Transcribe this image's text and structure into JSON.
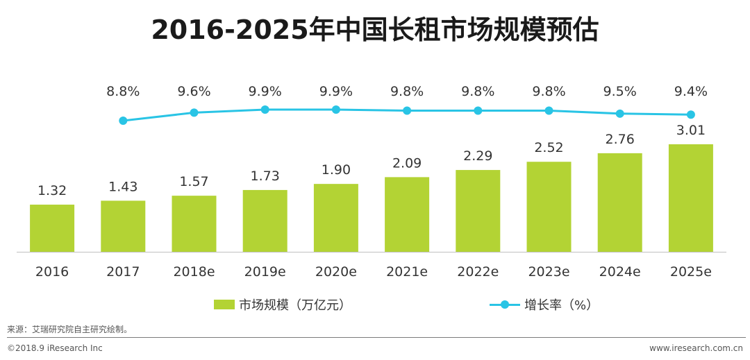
{
  "title": "2016-2025年中国长租市场规模预估",
  "chart_data": {
    "type": "bar+line",
    "categories": [
      "2016",
      "2017",
      "2018e",
      "2019e",
      "2020e",
      "2021e",
      "2022e",
      "2023e",
      "2024e",
      "2025e"
    ],
    "series": [
      {
        "name": "市场规模（万亿元）",
        "type": "bar",
        "values": [
          1.32,
          1.43,
          1.57,
          1.73,
          1.9,
          2.09,
          2.29,
          2.52,
          2.76,
          3.01
        ],
        "labels": [
          "1.32",
          "1.43",
          "1.57",
          "1.73",
          "1.90",
          "2.09",
          "2.29",
          "2.52",
          "2.76",
          "3.01"
        ]
      },
      {
        "name": "增长率（%）",
        "type": "line",
        "values": [
          null,
          8.8,
          9.6,
          9.9,
          9.9,
          9.8,
          9.8,
          9.8,
          9.5,
          9.4
        ],
        "labels": [
          null,
          "8.8%",
          "9.6%",
          "9.9%",
          "9.9%",
          "9.8%",
          "9.8%",
          "9.8%",
          "9.5%",
          "9.4%"
        ]
      }
    ],
    "bar_ylim": [
      0,
      3.5
    ],
    "line_ylim": [
      0,
      10.6
    ],
    "grid": false,
    "legend": "bottom-center",
    "colors": {
      "bar": "#b3d334",
      "line": "#29c4e5"
    }
  },
  "legend": {
    "bar_label": "市场规模（万亿元）",
    "line_label": "增长率（%）"
  },
  "footer": {
    "source": "来源：艾瑞研究院自主研究绘制。",
    "copyright": "©2018.9 iResearch Inc",
    "website": "www.iresearch.com.cn"
  }
}
